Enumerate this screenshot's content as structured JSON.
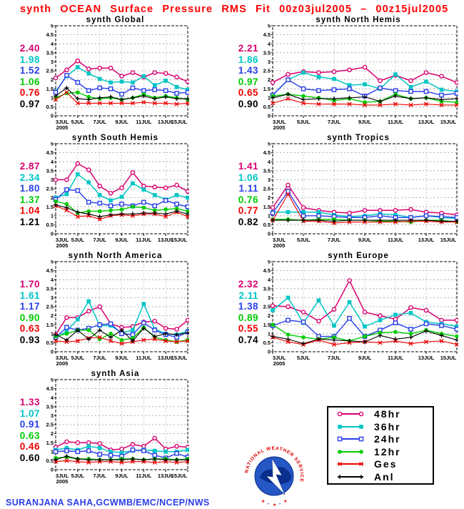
{
  "header": {
    "title": "synth OCEAN Surface Pressure RMS Fit 00z03jul2005 – 00z15jul2005",
    "color": "#FF0000"
  },
  "credit": {
    "text": "SURANJANA SAHA,GCWMB/EMC/NCEP/NWS",
    "color": "#2A3FE8"
  },
  "logo": {
    "text": "NATIONAL WEATHER SERVICE"
  },
  "legend": {
    "position": "bottom-right",
    "entries": [
      {
        "name": "48hr",
        "label": "48hr"
      },
      {
        "name": "36hr",
        "label": "36hr"
      },
      {
        "name": "24hr",
        "label": "24hr"
      },
      {
        "name": "12hr",
        "label": "12hr"
      },
      {
        "name": "Ges",
        "label": "Ges"
      },
      {
        "name": "Anl",
        "label": "Anl"
      }
    ]
  },
  "series_style": {
    "48hr": {
      "color": "#D8006E",
      "marker": "circle-open",
      "lw": 1.5
    },
    "36hr": {
      "color": "#00C5C5",
      "marker": "square-fill",
      "lw": 1.5
    },
    "24hr": {
      "color": "#2A3FE8",
      "marker": "square-open",
      "lw": 1.4
    },
    "12hr": {
      "color": "#00CC00",
      "marker": "circle-fill",
      "lw": 1.4
    },
    "Ges": {
      "color": "#EE0000",
      "marker": "x",
      "lw": 1.1
    },
    "Anl": {
      "color": "#000000",
      "marker": "plus",
      "lw": 1.1
    }
  },
  "chart_data": [
    {
      "type": "line",
      "title": "synth Global",
      "ylim": [
        0,
        5
      ],
      "ytick_step": 0.5,
      "grid": true,
      "x_labels": [
        "3JUL",
        "5JUL",
        "7JUL",
        "9JUL",
        "11JUL",
        "13JUL",
        "15JUL"
      ],
      "x_tick_idx": [
        0,
        2,
        4,
        6,
        8,
        10,
        12
      ],
      "x_year": "2005",
      "means": {
        "h48": "2.40",
        "h36": "1.98",
        "h24": "1.52",
        "h12": "1.06",
        "ges": "0.76",
        "anl": "0.97"
      },
      "series": [
        {
          "name": "48hr",
          "values": [
            2.1,
            2.55,
            3.05,
            2.6,
            2.65,
            2.65,
            2.2,
            2.4,
            2.15,
            2.4,
            2.35,
            2.15,
            1.9
          ]
        },
        {
          "name": "36hr",
          "values": [
            1.35,
            2.2,
            2.7,
            2.35,
            2.05,
            1.85,
            1.9,
            1.85,
            2.2,
            1.7,
            1.95,
            1.6,
            1.45
          ]
        },
        {
          "name": "24hr",
          "values": [
            1.3,
            2.25,
            1.85,
            1.4,
            1.55,
            1.5,
            1.2,
            1.55,
            1.4,
            1.45,
            1.4,
            1.25,
            1.3
          ]
        },
        {
          "name": "12hr",
          "values": [
            1.0,
            1.25,
            1.3,
            1.05,
            0.95,
            1.0,
            0.9,
            1.0,
            1.2,
            1.0,
            1.1,
            1.0,
            0.9
          ]
        },
        {
          "name": "Ges",
          "values": [
            0.9,
            1.3,
            0.7,
            0.7,
            0.7,
            0.7,
            0.7,
            0.7,
            0.75,
            0.7,
            0.7,
            0.65,
            0.7
          ]
        },
        {
          "name": "Anl",
          "values": [
            1.1,
            1.55,
            0.95,
            0.9,
            1.0,
            1.05,
            0.9,
            1.0,
            1.1,
            0.95,
            1.05,
            0.95,
            0.95
          ]
        }
      ]
    },
    {
      "type": "line",
      "title": "synth North Hemis",
      "ylim": [
        0,
        5
      ],
      "ytick_step": 0.5,
      "grid": true,
      "x_labels": [
        "3JUL",
        "5JUL",
        "7JUL",
        "9JUL",
        "11JUL",
        "13JUL",
        "15JUL"
      ],
      "x_tick_idx": [
        0,
        2,
        4,
        6,
        8,
        10,
        12
      ],
      "x_year": "2005",
      "means": {
        "h48": "2.21",
        "h36": "1.86",
        "h24": "1.43",
        "h12": "0.97",
        "ges": "0.65",
        "anl": "0.90"
      },
      "series": [
        {
          "name": "48hr",
          "values": [
            1.85,
            2.3,
            2.45,
            2.4,
            2.45,
            2.55,
            2.7,
            1.95,
            2.25,
            1.95,
            2.4,
            2.2,
            1.85
          ]
        },
        {
          "name": "36hr",
          "values": [
            1.15,
            2.0,
            2.4,
            2.15,
            2.05,
            1.7,
            1.75,
            1.5,
            2.3,
            1.6,
            1.9,
            1.45,
            1.35
          ]
        },
        {
          "name": "24hr",
          "values": [
            1.15,
            2.0,
            1.5,
            1.4,
            1.45,
            1.5,
            1.1,
            1.55,
            1.4,
            1.35,
            1.35,
            1.15,
            1.25
          ]
        },
        {
          "name": "12hr",
          "values": [
            1.1,
            1.2,
            1.1,
            1.0,
            0.85,
            0.95,
            0.75,
            0.8,
            1.2,
            0.95,
            1.0,
            0.8,
            0.75
          ]
        },
        {
          "name": "Ges",
          "values": [
            0.7,
            0.95,
            0.7,
            0.65,
            0.65,
            0.65,
            0.6,
            0.6,
            0.65,
            0.6,
            0.65,
            0.6,
            0.6
          ]
        },
        {
          "name": "Anl",
          "values": [
            1.0,
            1.2,
            0.9,
            0.95,
            0.95,
            1.0,
            1.05,
            0.8,
            1.1,
            0.95,
            1.0,
            0.9,
            0.95
          ]
        }
      ]
    },
    {
      "type": "line",
      "title": "synth South Hemis",
      "ylim": [
        0,
        5
      ],
      "ytick_step": 0.5,
      "grid": true,
      "x_labels": [
        "3JUL",
        "5JUL",
        "7JUL",
        "9JUL",
        "11JUL",
        "13JUL",
        "15JUL"
      ],
      "x_tick_idx": [
        0,
        2,
        4,
        6,
        8,
        10,
        12
      ],
      "x_year": "2005",
      "means": {
        "h48": "2.87",
        "h36": "2.34",
        "h24": "1.80",
        "h12": "1.37",
        "ges": "1.04",
        "anl": "1.21"
      },
      "series": [
        {
          "name": "48hr",
          "values": [
            3.0,
            3.0,
            3.9,
            3.55,
            2.65,
            2.25,
            2.55,
            3.4,
            2.65,
            2.6,
            2.55,
            2.7,
            2.35
          ]
        },
        {
          "name": "36hr",
          "values": [
            2.0,
            2.2,
            3.3,
            2.85,
            2.15,
            1.85,
            2.05,
            2.8,
            2.45,
            2.15,
            1.9,
            2.15,
            2.0
          ]
        },
        {
          "name": "24hr",
          "values": [
            1.9,
            2.45,
            2.4,
            1.75,
            1.7,
            1.55,
            1.65,
            1.55,
            1.75,
            1.55,
            1.85,
            1.65,
            1.5
          ]
        },
        {
          "name": "12hr",
          "values": [
            1.8,
            1.65,
            1.15,
            1.25,
            1.25,
            1.3,
            1.35,
            1.5,
            1.45,
            1.3,
            1.35,
            1.4,
            1.25
          ]
        },
        {
          "name": "Ges",
          "values": [
            1.55,
            1.3,
            0.95,
            1.0,
            0.8,
            1.0,
            1.05,
            1.0,
            1.1,
            1.1,
            0.95,
            1.2,
            0.95
          ]
        },
        {
          "name": "Anl",
          "values": [
            1.6,
            1.45,
            1.2,
            1.1,
            0.95,
            1.05,
            1.1,
            1.1,
            1.15,
            1.15,
            1.1,
            1.25,
            1.1
          ]
        }
      ]
    },
    {
      "type": "line",
      "title": "synth Tropics",
      "ylim": [
        0,
        5
      ],
      "ytick_step": 0.5,
      "grid": true,
      "x_labels": [
        "3JUL",
        "5JUL",
        "7JUL",
        "9JUL",
        "11JUL",
        "13JUL",
        "15JUL"
      ],
      "x_tick_idx": [
        0,
        2,
        4,
        6,
        8,
        10,
        12
      ],
      "x_year": "2005",
      "means": {
        "h48": "1.41",
        "h36": "1.06",
        "h24": "1.11",
        "h12": "0.76",
        "ges": "0.77",
        "anl": "0.82"
      },
      "series": [
        {
          "name": "48hr",
          "values": [
            1.45,
            2.7,
            1.45,
            1.3,
            1.2,
            1.15,
            1.3,
            1.3,
            1.3,
            1.35,
            1.2,
            1.15,
            1.05
          ]
        },
        {
          "name": "36hr",
          "values": [
            1.2,
            1.2,
            1.2,
            1.2,
            1.05,
            0.95,
            1.0,
            1.1,
            1.05,
            0.9,
            1.0,
            0.9,
            0.85
          ]
        },
        {
          "name": "24hr",
          "values": [
            1.15,
            2.35,
            1.0,
            1.0,
            0.95,
            0.9,
            0.9,
            1.0,
            0.9,
            0.9,
            1.0,
            0.95,
            0.9
          ]
        },
        {
          "name": "12hr",
          "values": [
            0.8,
            0.8,
            0.75,
            0.8,
            0.8,
            0.75,
            0.75,
            0.7,
            0.7,
            0.65,
            0.75,
            0.75,
            0.65
          ]
        },
        {
          "name": "Ges",
          "values": [
            0.75,
            2.2,
            0.7,
            0.7,
            0.6,
            0.65,
            0.65,
            0.65,
            0.65,
            0.7,
            0.7,
            0.65,
            0.65
          ]
        },
        {
          "name": "Anl",
          "values": [
            0.75,
            0.75,
            0.75,
            0.75,
            0.7,
            0.75,
            0.75,
            0.75,
            0.75,
            0.75,
            0.75,
            0.7,
            0.7
          ]
        }
      ]
    },
    {
      "type": "line",
      "title": "synth North America",
      "ylim": [
        0,
        5
      ],
      "ytick_step": 0.5,
      "grid": true,
      "x_labels": [
        "3JUL",
        "5JUL",
        "7JUL",
        "9JUL",
        "11JUL",
        "13JUL",
        "15JUL"
      ],
      "x_tick_idx": [
        0,
        2,
        4,
        6,
        8,
        10,
        12
      ],
      "x_year": "2005",
      "means": {
        "h48": "1.70",
        "h36": "1.61",
        "h24": "1.17",
        "h12": "0.90",
        "ges": "0.63",
        "anl": "0.93"
      },
      "series": [
        {
          "name": "48hr",
          "values": [
            0.95,
            1.9,
            1.9,
            2.25,
            2.5,
            1.55,
            1.35,
            1.4,
            1.65,
            1.7,
            1.3,
            1.25,
            1.75
          ]
        },
        {
          "name": "36hr",
          "values": [
            0.75,
            1.15,
            1.8,
            2.8,
            1.45,
            1.45,
            1.05,
            1.2,
            2.65,
            1.25,
            1.0,
            0.95,
            1.15
          ]
        },
        {
          "name": "24hr",
          "values": [
            0.8,
            1.35,
            1.2,
            1.3,
            1.5,
            1.55,
            1.0,
            0.95,
            1.6,
            1.2,
            0.95,
            0.8,
            1.1
          ]
        },
        {
          "name": "12hr",
          "values": [
            0.85,
            1.0,
            1.2,
            1.2,
            0.7,
            1.0,
            0.65,
            0.75,
            1.35,
            0.8,
            0.65,
            0.55,
            0.65
          ]
        },
        {
          "name": "Ges",
          "values": [
            0.6,
            0.55,
            0.6,
            0.75,
            0.8,
            0.6,
            0.45,
            0.55,
            0.65,
            0.7,
            0.6,
            0.55,
            0.6
          ]
        },
        {
          "name": "Anl",
          "values": [
            0.95,
            0.65,
            1.2,
            0.7,
            1.2,
            0.8,
            1.2,
            0.6,
            1.3,
            0.85,
            1.0,
            0.95,
            1.05
          ]
        }
      ]
    },
    {
      "type": "line",
      "title": "synth Europe",
      "ylim": [
        0,
        5
      ],
      "ytick_step": 0.5,
      "grid": true,
      "x_labels": [
        "3JUL",
        "5JUL",
        "7JUL",
        "9JUL",
        "11JUL",
        "13JUL",
        "15JUL"
      ],
      "x_tick_idx": [
        0,
        2,
        4,
        6,
        8,
        10,
        12
      ],
      "x_year": "2005",
      "means": {
        "h48": "2.32",
        "h36": "2.11",
        "h24": "1.38",
        "h12": "0.89",
        "ges": "0.55",
        "anl": "0.74"
      },
      "series": [
        {
          "name": "48hr",
          "values": [
            2.55,
            2.5,
            2.2,
            1.7,
            2.35,
            3.95,
            2.2,
            2.0,
            1.8,
            2.45,
            2.3,
            1.75,
            1.75
          ]
        },
        {
          "name": "36hr",
          "values": [
            2.3,
            3.0,
            1.6,
            2.85,
            1.45,
            2.75,
            1.4,
            1.75,
            2.05,
            2.15,
            1.65,
            1.55,
            1.4
          ]
        },
        {
          "name": "24hr",
          "values": [
            1.45,
            1.75,
            1.65,
            0.85,
            0.85,
            1.85,
            0.85,
            1.2,
            1.6,
            1.25,
            1.55,
            1.45,
            1.25
          ]
        },
        {
          "name": "12hr",
          "values": [
            1.5,
            0.95,
            0.8,
            0.7,
            0.8,
            0.6,
            0.85,
            1.05,
            1.1,
            1.0,
            1.2,
            1.0,
            0.85
          ]
        },
        {
          "name": "Ges",
          "values": [
            0.8,
            0.55,
            0.4,
            0.65,
            0.4,
            0.5,
            0.55,
            0.5,
            0.6,
            0.45,
            0.55,
            0.6,
            0.4
          ]
        },
        {
          "name": "Anl",
          "values": [
            0.85,
            0.7,
            0.45,
            0.7,
            0.65,
            0.6,
            0.55,
            0.9,
            0.7,
            0.8,
            1.15,
            0.9,
            0.65
          ]
        }
      ]
    },
    {
      "type": "line",
      "title": "synth Asia",
      "ylim": [
        0,
        5
      ],
      "ytick_step": 0.5,
      "grid": true,
      "x_labels": [
        "3JUL",
        "5JUL",
        "7JUL",
        "9JUL",
        "11JUL",
        "13JUL",
        "15JUL"
      ],
      "x_tick_idx": [
        0,
        2,
        4,
        6,
        8,
        10,
        12
      ],
      "x_year": "2005",
      "means": {
        "h48": "1.33",
        "h36": "1.07",
        "h24": "0.91",
        "h12": "0.63",
        "ges": "0.46",
        "anl": "0.60"
      },
      "series": [
        {
          "name": "48hr",
          "values": [
            1.25,
            1.55,
            1.5,
            1.5,
            1.45,
            1.1,
            1.15,
            1.4,
            1.3,
            1.75,
            1.15,
            1.3,
            1.25
          ]
        },
        {
          "name": "36hr",
          "values": [
            1.1,
            1.2,
            1.1,
            1.3,
            1.2,
            1.0,
            0.95,
            1.05,
            1.1,
            1.05,
            1.0,
            1.0,
            1.1
          ]
        },
        {
          "name": "24hr",
          "values": [
            1.0,
            1.05,
            1.0,
            1.05,
            0.85,
            0.8,
            0.75,
            1.1,
            1.05,
            0.8,
            0.65,
            0.9,
            0.7
          ]
        },
        {
          "name": "12hr",
          "values": [
            0.65,
            0.7,
            0.6,
            0.6,
            0.55,
            0.55,
            0.6,
            0.6,
            0.55,
            0.6,
            0.6,
            0.55,
            0.6
          ]
        },
        {
          "name": "Ges",
          "values": [
            0.45,
            0.5,
            0.45,
            0.4,
            0.45,
            0.45,
            0.4,
            0.45,
            0.45,
            0.4,
            0.45,
            0.4,
            0.45
          ]
        },
        {
          "name": "Anl",
          "values": [
            0.55,
            0.75,
            0.6,
            0.55,
            0.55,
            0.55,
            0.55,
            0.6,
            0.55,
            0.6,
            0.55,
            0.55,
            0.55
          ]
        }
      ]
    }
  ]
}
